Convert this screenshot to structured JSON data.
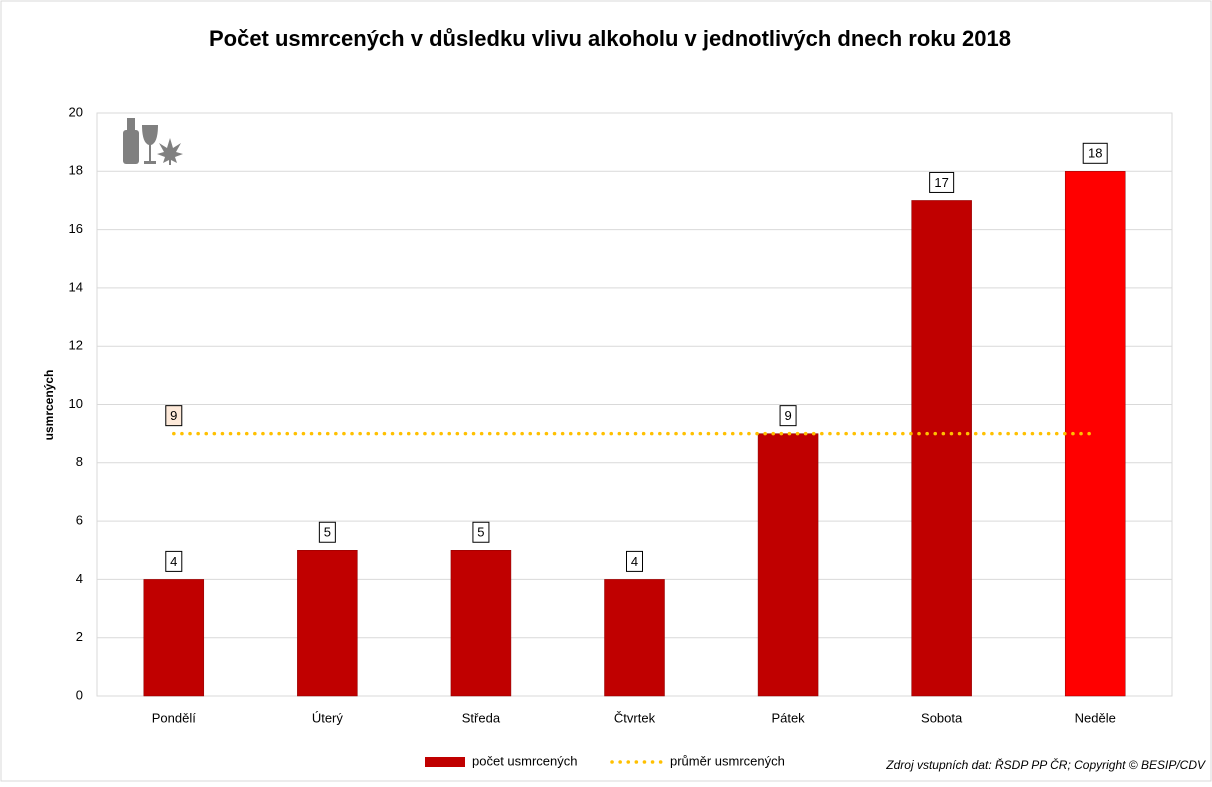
{
  "chart_data": {
    "type": "bar",
    "title": "Počet usmrcených v důsledku vlivu alkoholu v jednotlivých dnech roku 2018",
    "y_label": "usmrcených",
    "source": "Zdroj vstupních dat: ŘSDP PP ČR; Copyright © BESIP/CDV",
    "categories": [
      "Pondělí",
      "Úterý",
      "Středa",
      "Čtvrtek",
      "Pátek",
      "Sobota",
      "Neděle"
    ],
    "series": [
      {
        "name": "počet usmrcených",
        "type": "bar",
        "colors": [
          "#c00000",
          "#c00000",
          "#c00000",
          "#c00000",
          "#c00000",
          "#c00000",
          "#ff0000"
        ],
        "values": [
          4,
          5,
          5,
          4,
          9,
          17,
          18
        ]
      },
      {
        "name": "průměr usmrcených",
        "type": "line",
        "color": "#ffc000",
        "values": [
          9,
          9,
          9,
          9,
          9,
          9,
          9
        ]
      }
    ],
    "ylim": [
      0,
      20
    ],
    "yticks": [
      0,
      2,
      4,
      6,
      8,
      10,
      12,
      14,
      16,
      18,
      20
    ],
    "grid": true,
    "legend": "bottom"
  }
}
